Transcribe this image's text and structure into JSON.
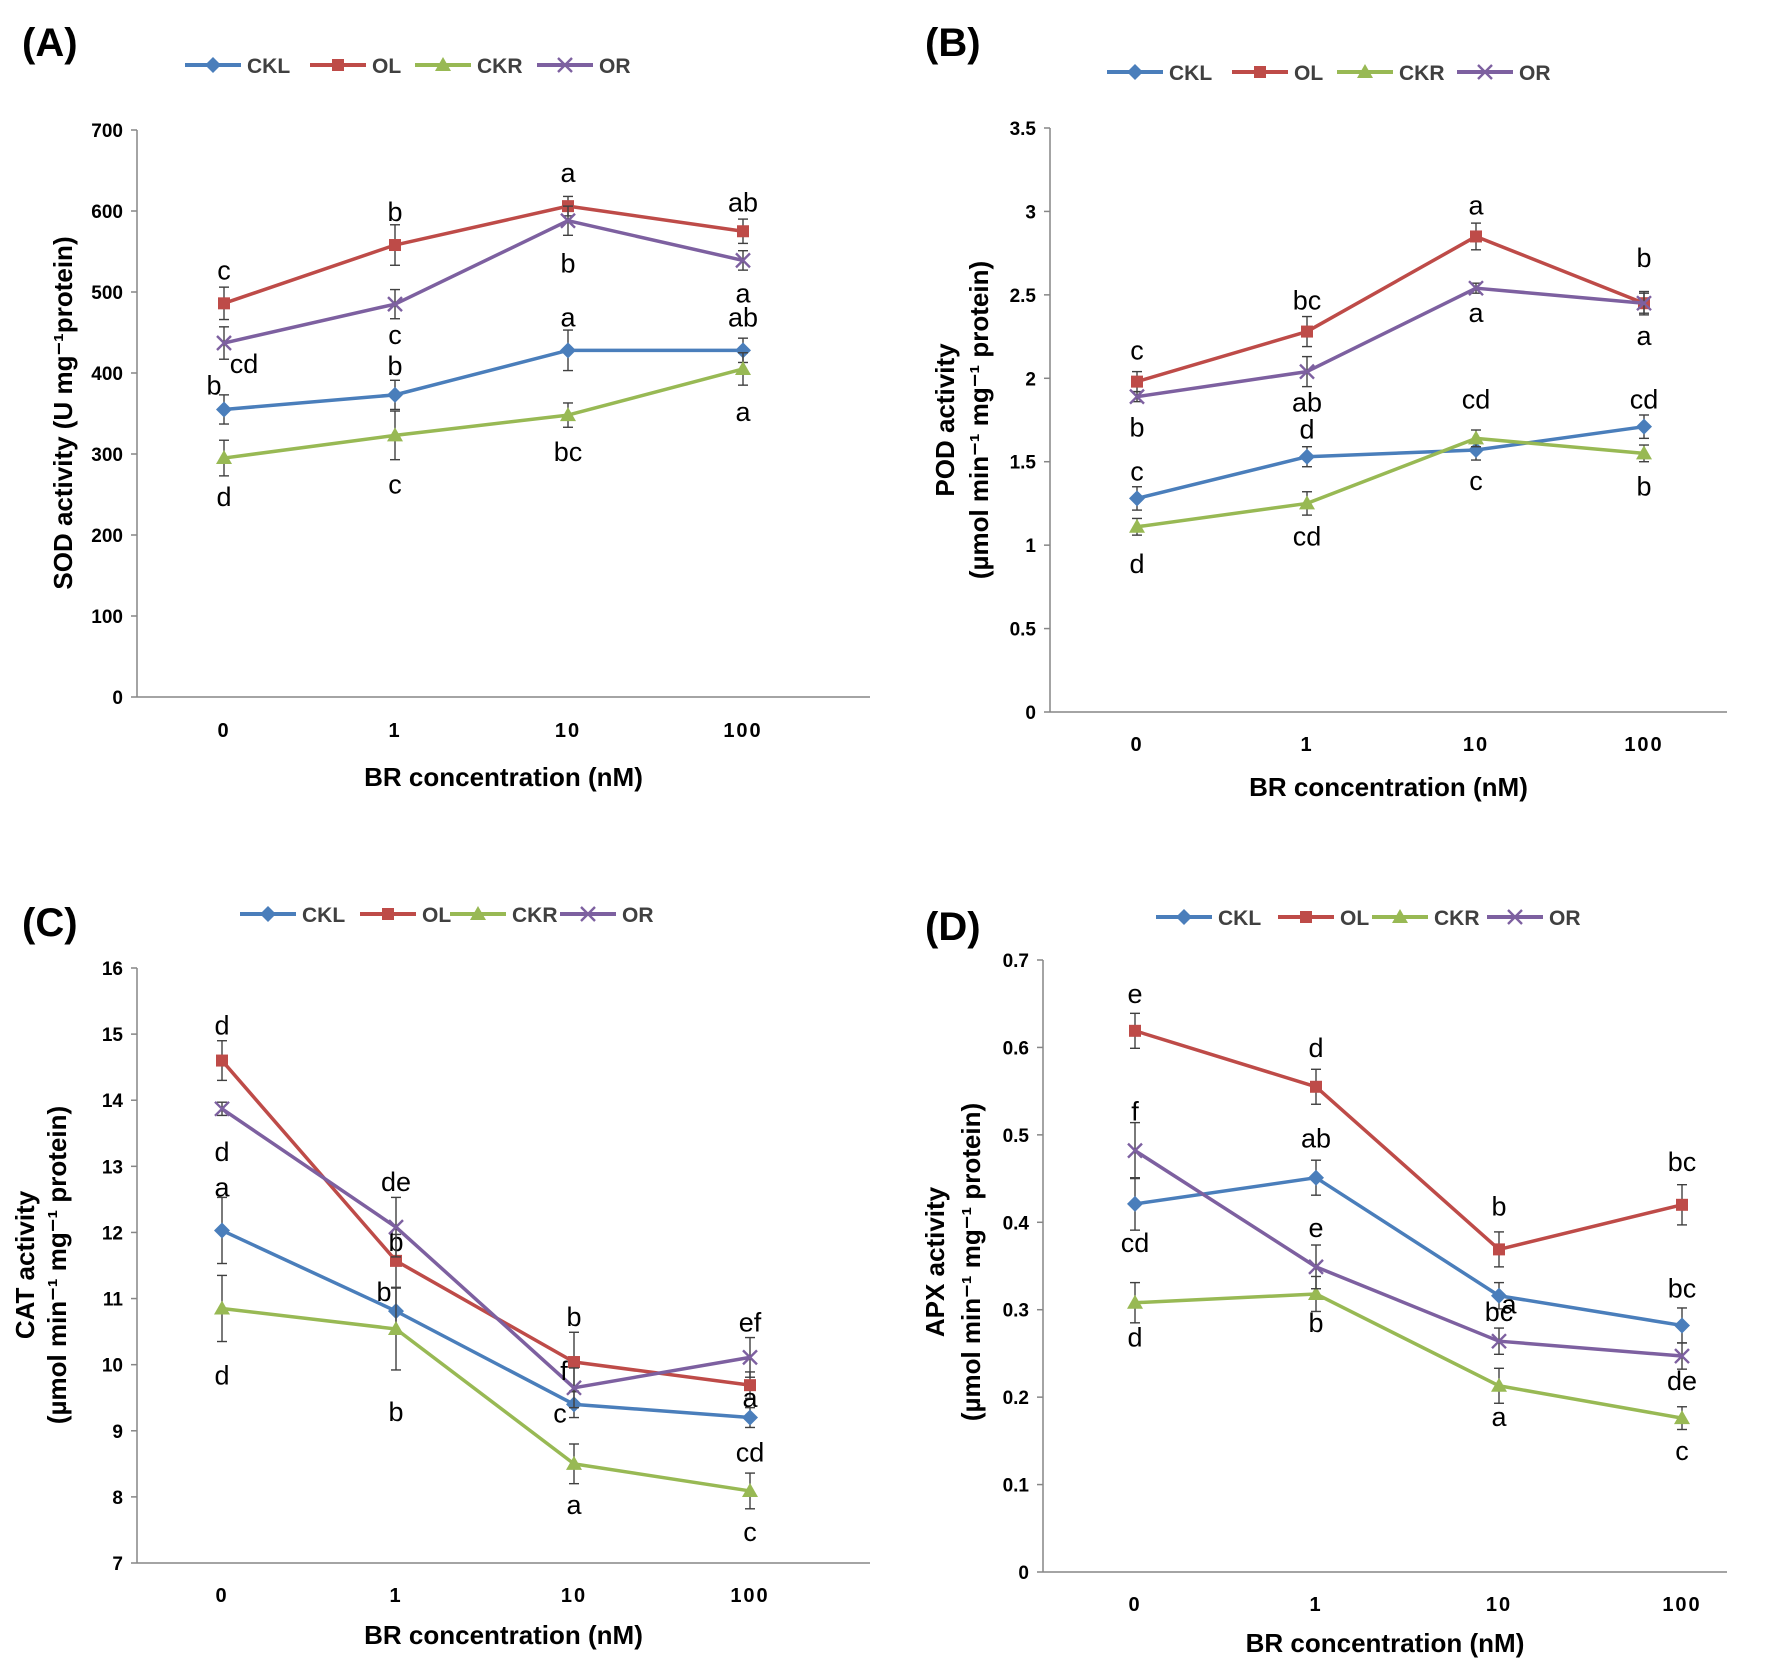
{
  "figure": {
    "colors": {
      "CKL": "#4a7ebb",
      "OL": "#be4b48",
      "CKR": "#98b954",
      "OR": "#7d60a0",
      "axis": "#868686",
      "errorbar": "#404040"
    },
    "marker_icons": {
      "CKL": "diamond-marker-icon",
      "OL": "square-marker-icon",
      "CKR": "triangle-marker-icon",
      "OR": "x-marker-icon"
    }
  },
  "chart_data": [
    {
      "panel": "(A)",
      "type": "line",
      "x": [
        "0",
        "1",
        "10",
        "100"
      ],
      "xlabel": "BR concentration (nM)",
      "ylabel_lines": [
        "SOD activity  (U mg⁻¹protein)"
      ],
      "ylim": [
        0,
        700
      ],
      "yticks": [
        "0",
        "100",
        "200",
        "300",
        "400",
        "500",
        "600",
        "700"
      ],
      "legend": [
        "CKL",
        "OL",
        "CKR",
        "OR"
      ],
      "series": [
        {
          "name": "CKL",
          "values": [
            355,
            373,
            428,
            428
          ],
          "errors": [
            18,
            18,
            25,
            15
          ],
          "labels": [
            "b",
            "b",
            "a",
            "ab"
          ]
        },
        {
          "name": "OL",
          "values": [
            486,
            558,
            606,
            575
          ],
          "errors": [
            20,
            25,
            12,
            15
          ],
          "labels": [
            "c",
            "b",
            "a",
            "ab"
          ]
        },
        {
          "name": "CKR",
          "values": [
            295,
            323,
            348,
            405
          ],
          "errors": [
            22,
            30,
            15,
            20
          ],
          "labels": [
            "d",
            "c",
            "bc",
            "a"
          ]
        },
        {
          "name": "OR",
          "values": [
            437,
            485,
            588,
            539
          ],
          "errors": [
            20,
            18,
            18,
            12
          ],
          "labels": [
            "cd",
            "c",
            "b",
            "a"
          ]
        }
      ]
    },
    {
      "panel": "(B)",
      "type": "line",
      "x": [
        "0",
        "1",
        "10",
        "100"
      ],
      "xlabel": "BR concentration (nM)",
      "ylabel_lines": [
        "POD activity",
        "(µmol min⁻¹ mg⁻¹ protein)"
      ],
      "ylim": [
        0,
        3.5
      ],
      "yticks": [
        "0",
        "0.5",
        "1",
        "1.5",
        "2",
        "2.5",
        "3",
        "3.5"
      ],
      "legend": [
        "CKL",
        "OL",
        "CKR",
        "OR"
      ],
      "series": [
        {
          "name": "CKL",
          "values": [
            1.28,
            1.53,
            1.57,
            1.71
          ],
          "errors": [
            0.07,
            0.06,
            0.06,
            0.07
          ],
          "labels": [
            "c",
            "d",
            "c",
            "cd"
          ]
        },
        {
          "name": "OL",
          "values": [
            1.98,
            2.28,
            2.85,
            2.45
          ],
          "errors": [
            0.06,
            0.09,
            0.08,
            0.06
          ],
          "labels": [
            "c",
            "bc",
            "a",
            "b"
          ]
        },
        {
          "name": "CKR",
          "values": [
            1.11,
            1.25,
            1.64,
            1.55
          ],
          "errors": [
            0.05,
            0.07,
            0.05,
            0.05
          ],
          "labels": [
            "d",
            "cd",
            "cd",
            "b"
          ]
        },
        {
          "name": "OR",
          "values": [
            1.89,
            2.04,
            2.54,
            2.45
          ],
          "errors": [
            0.03,
            0.09,
            0.03,
            0.07
          ],
          "labels": [
            "b",
            "ab",
            "a",
            "a"
          ]
        }
      ]
    },
    {
      "panel": "(C)",
      "type": "line",
      "x": [
        "0",
        "1",
        "10",
        "100"
      ],
      "xlabel": "BR concentration (nM)",
      "ylabel_lines": [
        "CAT activity",
        "(µmol min⁻¹ mg⁻¹ protein)"
      ],
      "ylim": [
        7,
        16
      ],
      "yticks": [
        "7",
        "8",
        "9",
        "10",
        "11",
        "12",
        "13",
        "14",
        "15",
        "16"
      ],
      "legend": [
        "CKL",
        "OL",
        "CKR",
        "OR"
      ],
      "series": [
        {
          "name": "CKL",
          "values": [
            12.03,
            10.81,
            9.4,
            9.2
          ],
          "errors": [
            0.5,
            0.35,
            0.2,
            0.15
          ],
          "labels": [
            "a",
            "b",
            "c",
            "cd"
          ]
        },
        {
          "name": "OL",
          "values": [
            14.6,
            11.57,
            10.04,
            9.69
          ],
          "errors": [
            0.3,
            0.4,
            0.45,
            0.2
          ],
          "labels": [
            "d",
            "b",
            "b",
            "a"
          ]
        },
        {
          "name": "CKR",
          "values": [
            10.85,
            10.54,
            8.5,
            8.09
          ],
          "errors": [
            0.5,
            0.62,
            0.3,
            0.27
          ],
          "labels": [
            "d",
            "b",
            "a",
            "c"
          ]
        },
        {
          "name": "OR",
          "values": [
            13.87,
            12.08,
            9.65,
            10.11
          ],
          "errors": [
            0.1,
            0.45,
            0.3,
            0.3
          ],
          "labels": [
            "d",
            "de",
            "f",
            "ef"
          ]
        }
      ]
    },
    {
      "panel": "(D)",
      "type": "line",
      "x": [
        "0",
        "1",
        "10",
        "100"
      ],
      "xlabel": "BR concentration (nM)",
      "ylabel_lines": [
        "APX activity",
        "(µmol min⁻¹ mg⁻¹ protein)"
      ],
      "ylim": [
        0,
        0.7
      ],
      "yticks": [
        "0",
        "0.1",
        "0.2",
        "0.3",
        "0.4",
        "0.5",
        "0.6",
        "0.7"
      ],
      "legend": [
        "CKL",
        "OL",
        "CKR",
        "OR"
      ],
      "series": [
        {
          "name": "CKL",
          "values": [
            0.421,
            0.451,
            0.316,
            0.282
          ],
          "errors": [
            0.03,
            0.02,
            0.015,
            0.02
          ],
          "labels": [
            "cd",
            "ab",
            "a",
            "bc"
          ]
        },
        {
          "name": "OL",
          "values": [
            0.619,
            0.555,
            0.369,
            0.42
          ],
          "errors": [
            0.02,
            0.02,
            0.02,
            0.023
          ],
          "labels": [
            "e",
            "d",
            "b",
            "bc"
          ]
        },
        {
          "name": "CKR",
          "values": [
            0.308,
            0.318,
            0.213,
            0.176
          ],
          "errors": [
            0.023,
            0.02,
            0.02,
            0.013
          ],
          "labels": [
            "d",
            "b",
            "a",
            "c"
          ]
        },
        {
          "name": "OR",
          "values": [
            0.482,
            0.349,
            0.264,
            0.247
          ],
          "errors": [
            0.032,
            0.025,
            0.015,
            0.015
          ],
          "labels": [
            "f",
            "e",
            "bc",
            "de"
          ]
        }
      ]
    }
  ]
}
